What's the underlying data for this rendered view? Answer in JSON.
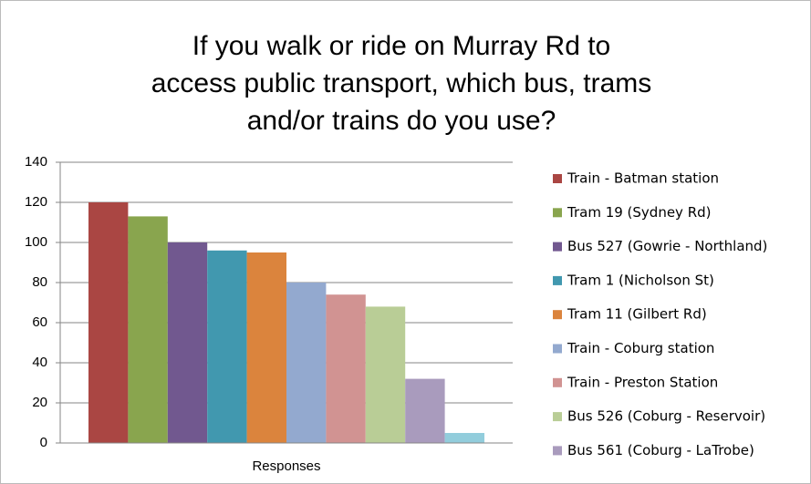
{
  "chart_data": {
    "type": "bar",
    "title": [
      "If you walk or ride on Murray Rd to",
      "access public transport, which bus, trams",
      "and/or trains do you use?"
    ],
    "categories": [
      "Responses"
    ],
    "series": [
      {
        "name": "Train - Batman station",
        "color": "#AA4643",
        "values": [
          120
        ]
      },
      {
        "name": "Tram 19 (Sydney Rd)",
        "color": "#89A54E",
        "values": [
          113
        ]
      },
      {
        "name": "Bus 527 (Gowrie - Northland)",
        "color": "#71588F",
        "values": [
          100
        ]
      },
      {
        "name": "Tram 1 (Nicholson St)",
        "color": "#4198AF",
        "values": [
          96
        ]
      },
      {
        "name": "Tram 11 (Gilbert Rd)",
        "color": "#DB843D",
        "values": [
          95
        ]
      },
      {
        "name": "Train - Coburg station",
        "color": "#93A9CF",
        "values": [
          80
        ]
      },
      {
        "name": "Train - Preston Station",
        "color": "#D19392",
        "values": [
          74
        ]
      },
      {
        "name": "Bus 526  (Coburg - Reservoir)",
        "color": "#B9CD96",
        "values": [
          68
        ]
      },
      {
        "name": "Bus 561 (Coburg - LaTrobe)",
        "color": "#A99BBD",
        "values": [
          32
        ]
      },
      {
        "name": null,
        "color": "#92CDDC",
        "values": [
          5
        ]
      }
    ],
    "ylim": [
      0,
      140
    ],
    "yticks": [
      0,
      20,
      40,
      60,
      80,
      100,
      120,
      140
    ],
    "grid": true,
    "legend": "right"
  }
}
